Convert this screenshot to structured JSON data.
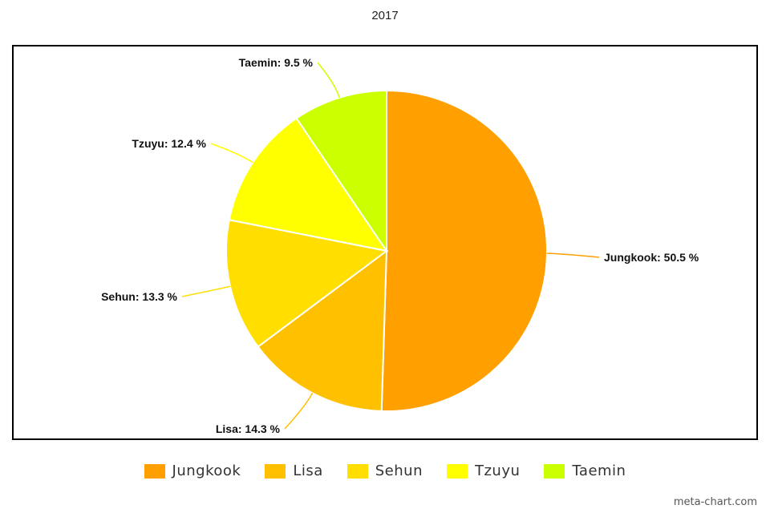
{
  "chart_data": {
    "type": "pie",
    "title": "2017",
    "categories": [
      "Jungkook",
      "Lisa",
      "Sehun",
      "Tzuyu",
      "Taemin"
    ],
    "values": [
      50.5,
      14.3,
      13.3,
      12.4,
      9.5
    ],
    "slice_labels": [
      "Jungkook: 50.5 %",
      "Lisa: 14.3 %",
      "Sehun: 13.3 %",
      "Tzuyu: 12.4 %",
      "Taemin: 9.5 %"
    ],
    "colors": [
      "#ff9f00",
      "#ffc000",
      "#ffde00",
      "#ffff00",
      "#ccff00"
    ],
    "legend_position": "bottom"
  },
  "watermark": "meta-chart.com"
}
